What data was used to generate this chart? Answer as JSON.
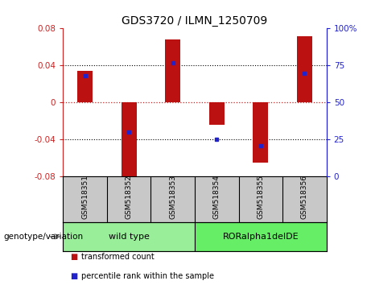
{
  "title": "GDS3720 / ILMN_1250709",
  "samples": [
    "GSM518351",
    "GSM518352",
    "GSM518353",
    "GSM518354",
    "GSM518355",
    "GSM518356"
  ],
  "transformed_counts": [
    0.034,
    -0.086,
    0.068,
    -0.024,
    -0.065,
    0.072
  ],
  "percentile_ranks": [
    68,
    30,
    77,
    25,
    21,
    70
  ],
  "ylim_left": [
    -0.08,
    0.08
  ],
  "yticks_left": [
    -0.08,
    -0.04,
    0.0,
    0.04,
    0.08
  ],
  "ytick_labels_left": [
    "-0.08",
    "-0.04",
    "0",
    "0.04",
    "0.08"
  ],
  "ylim_right": [
    0,
    100
  ],
  "yticks_right": [
    0,
    25,
    50,
    75,
    100
  ],
  "ytick_labels_right": [
    "0",
    "25",
    "50",
    "75",
    "100%"
  ],
  "group_boundaries": [
    [
      -0.5,
      2.5,
      "wild type",
      "#90EE90"
    ],
    [
      2.5,
      5.5,
      "RORalpha1delDE",
      "#66DD66"
    ]
  ],
  "group_label": "genotype/variation",
  "bar_color": "#BB1111",
  "dot_color": "#2222CC",
  "bar_width": 0.35,
  "zero_line_color": "#CC2222",
  "legend_items": [
    {
      "label": "transformed count",
      "color": "#BB1111"
    },
    {
      "label": "percentile rank within the sample",
      "color": "#2222CC"
    }
  ],
  "sample_panel_color": "#C8C8C8",
  "group_panel_color_1": "#99EE99",
  "group_panel_color_2": "#66EE66"
}
